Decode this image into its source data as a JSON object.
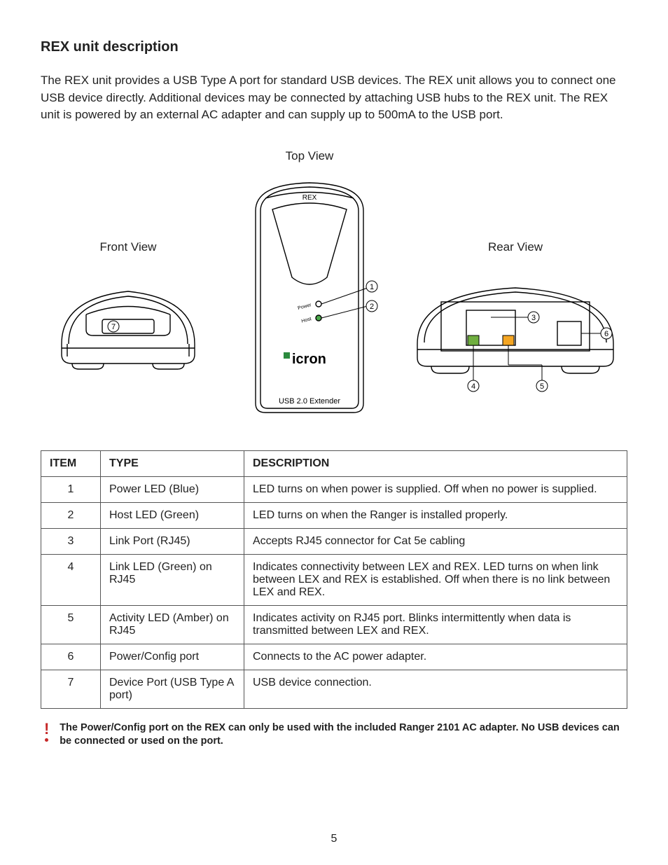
{
  "title": "REX unit description",
  "intro": "The REX unit provides a USB Type A port for standard USB devices.  The REX unit allows you to connect one USB device directly.  Additional devices may be connected by attaching USB hubs to the REX unit. The REX unit is powered by an external AC adapter and can supply up to 500mA to the USB port.",
  "labels": {
    "top_view": "Top View",
    "front_view": "Front View",
    "rear_view": "Rear View",
    "rex": "REX",
    "usb_extender": "USB 2.0 Extender",
    "power": "Power",
    "host": "Host",
    "brand": "icron"
  },
  "callouts": {
    "c1": "1",
    "c2": "2",
    "c3": "3",
    "c4": "4",
    "c5": "5",
    "c6": "6",
    "c7": "7"
  },
  "table": {
    "headers": {
      "item": "ITEM",
      "type": "TYPE",
      "desc": "DESCRIPTION"
    },
    "rows": [
      {
        "item": "1",
        "type": "Power LED (Blue)",
        "desc": "LED turns on when power is supplied. Off when no power is supplied."
      },
      {
        "item": "2",
        "type": "Host LED (Green)",
        "desc": "LED turns on when the Ranger is installed properly."
      },
      {
        "item": "3",
        "type": "Link Port (RJ45)",
        "desc": "Accepts RJ45 connector for Cat 5e cabling"
      },
      {
        "item": "4",
        "type": "Link LED (Green) on RJ45",
        "desc": "Indicates connectivity between LEX and REX.  LED turns on when link between LEX and REX is established.  Off when there is no link between LEX and REX."
      },
      {
        "item": "5",
        "type": "Activity LED (Amber) on RJ45",
        "desc": "Indicates activity on RJ45 port. Blinks intermittently when data is transmitted between LEX and REX."
      },
      {
        "item": "6",
        "type": "Power/Config port",
        "desc": "Connects to the AC power adapter."
      },
      {
        "item": "7",
        "type": "Device Port (USB Type A port)",
        "desc": "USB device connection."
      }
    ]
  },
  "warning": "The Power/Config port on the REX can only be used with the included Ranger 2101 AC adapter.  No USB devices can be connected or used on the port.",
  "page_number": "5",
  "colors": {
    "green": "#6fae3f",
    "amber": "#f5a623",
    "brand_green": "#2b8a3e",
    "led_green": "#4aa84a",
    "led_blank": "#ffffff"
  }
}
